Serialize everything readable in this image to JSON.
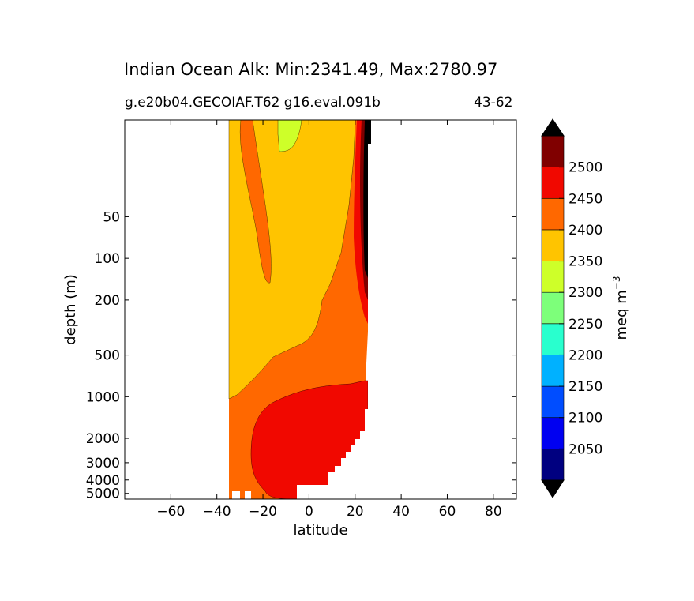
{
  "chart_data": {
    "type": "contour",
    "title": "Indian Ocean Alk: Min:2341.49, Max:2780.97",
    "subtitle_left": "g.e20b04.GECOIAF.T62 g16.eval.091b",
    "subtitle_right": "43-62",
    "xlabel": "latitude",
    "ylabel": "depth (m)",
    "xlim": [
      -80,
      90
    ],
    "ylim": [
      5500,
      10
    ],
    "y_scale": "log",
    "x_ticks": [
      -60,
      -40,
      -20,
      0,
      20,
      40,
      60,
      80
    ],
    "x_tick_labels": [
      "−60",
      "−40",
      "−20",
      "0",
      "20",
      "40",
      "60",
      "80"
    ],
    "y_ticks": [
      50,
      100,
      200,
      500,
      1000,
      2000,
      3000,
      4000,
      5000
    ],
    "y_tick_labels": [
      "50",
      "100",
      "200",
      "500",
      "1000",
      "2000",
      "3000",
      "4000",
      "5000"
    ],
    "colorbar": {
      "label": "meq m",
      "label_sup": "−3",
      "levels": [
        2000,
        2050,
        2100,
        2150,
        2200,
        2250,
        2300,
        2350,
        2400,
        2450,
        2500,
        2550
      ],
      "tick_labels": [
        "2050",
        "2100",
        "2150",
        "2200",
        "2250",
        "2300",
        "2350",
        "2400",
        "2450",
        "2500"
      ],
      "colors": [
        "#000080",
        "#0000f1",
        "#004dff",
        "#00b1ff",
        "#29ffce",
        "#7dff7a",
        "#ceff29",
        "#ffc400",
        "#ff6800",
        "#f10800",
        "#800000"
      ],
      "under_color": "#000000",
      "over_color": "#000000",
      "extend": "both"
    },
    "data_extent_lat": [
      -34,
      26
    ]
  }
}
